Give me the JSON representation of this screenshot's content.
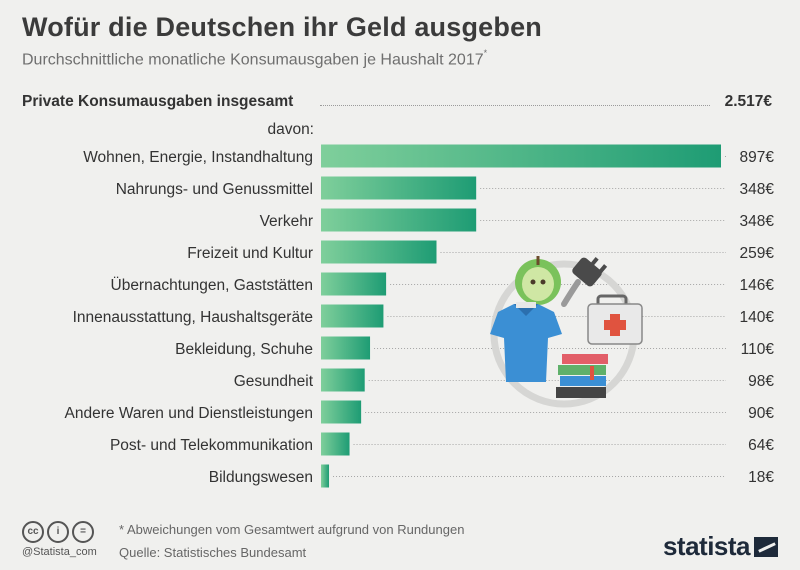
{
  "title": "Wofür die Deutschen ihr Geld ausgeben",
  "subtitle": "Durchschnittliche monatliche Konsumausgaben je Haushalt 2017",
  "subtitle_mark": "*",
  "total": {
    "label": "Private Konsumausgaben insgesamt",
    "value_label": "2.517€"
  },
  "davon": "davon:",
  "chart_data": {
    "type": "bar",
    "orientation": "horizontal",
    "unit": "€",
    "total": 2517,
    "categories": [
      "Wohnen, Energie, Instandhaltung",
      "Nahrungs- und Genussmittel",
      "Verkehr",
      "Freizeit und Kultur",
      "Übernachtungen, Gaststätten",
      "Innenausstattung, Haushaltsgeräte",
      "Bekleidung, Schuhe",
      "Gesundheit",
      "Andere Waren und Dienstleistungen",
      "Post- und Telekommunikation",
      "Bildungswesen"
    ],
    "values": [
      897,
      348,
      348,
      259,
      146,
      140,
      110,
      98,
      90,
      64,
      18
    ],
    "value_labels": [
      "897€",
      "348€",
      "348€",
      "259€",
      "146€",
      "140€",
      "110€",
      "98€",
      "90€",
      "64€",
      "18€"
    ],
    "colors": {
      "bar_start": "#7fcf9b",
      "bar_end": "#1e9c74"
    },
    "grid": false
  },
  "illustration": {
    "icons": [
      "apple-icon",
      "plug-icon",
      "tshirt-icon",
      "first-aid-kit-icon",
      "books-icon"
    ]
  },
  "footer": {
    "license_icons": [
      "cc",
      "i",
      "="
    ],
    "handle": "@Statista_com",
    "footnote": "* Abweichungen vom Gesamtwert aufgrund von Rundungen",
    "source": "Quelle: Statistisches Bundesamt",
    "brand": "statista"
  }
}
